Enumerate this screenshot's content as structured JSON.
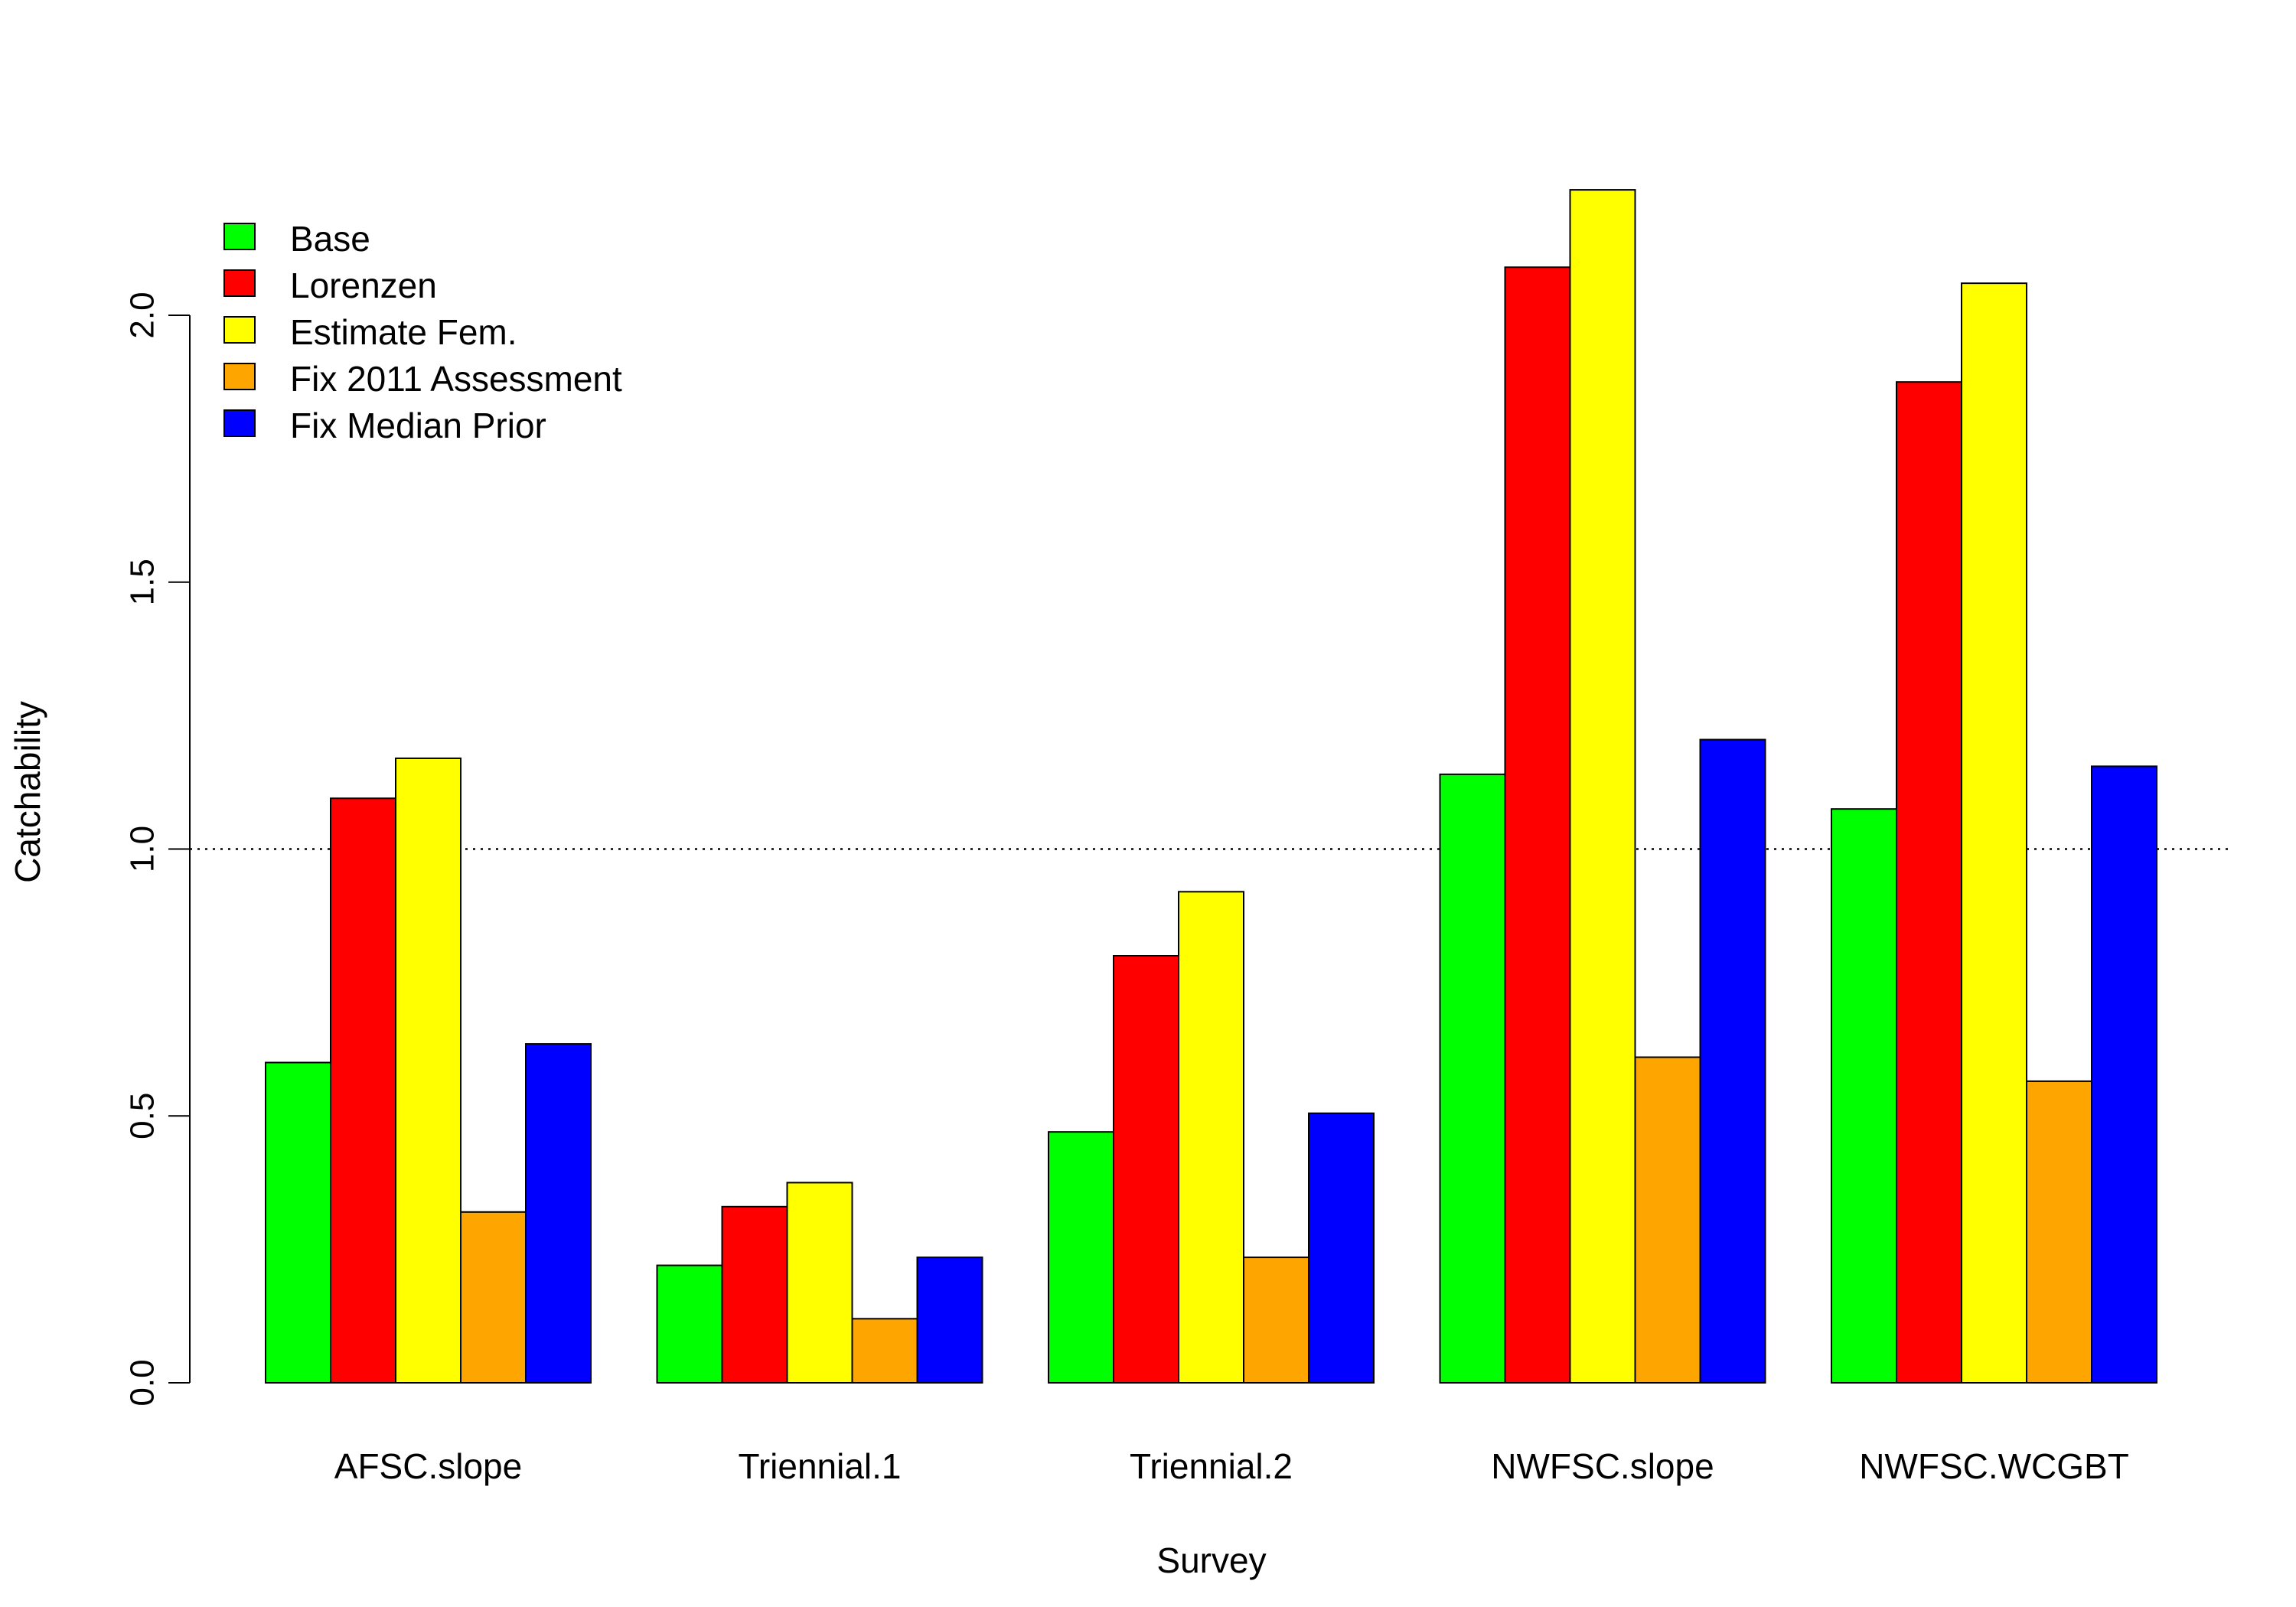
{
  "chart_data": {
    "type": "bar",
    "title": "",
    "xlabel": "Survey",
    "ylabel": "Catchability",
    "ylim": [
      0,
      2.3
    ],
    "yticks": [
      0.0,
      0.5,
      1.0,
      1.5,
      2.0
    ],
    "ytick_labels": [
      "0.0",
      "0.5",
      "1.0",
      "1.5",
      "2.0"
    ],
    "reference_line": {
      "y": 1.0,
      "style": "dotted"
    },
    "grid": false,
    "legend_placement": "top-left",
    "categories": [
      "AFSC.slope",
      "Triennial.1",
      "Triennial.2",
      "NWFSC.slope",
      "NWFSC.WCGBT"
    ],
    "series": [
      {
        "name": "Base",
        "color": "#00ff00",
        "values": [
          0.6,
          0.22,
          0.47,
          1.14,
          1.075
        ]
      },
      {
        "name": "Lorenzen",
        "color": "#ff0000",
        "values": [
          1.095,
          0.33,
          0.8,
          2.09,
          1.875
        ]
      },
      {
        "name": "Estimate Fem.",
        "color": "#ffff00",
        "values": [
          1.17,
          0.375,
          0.92,
          2.235,
          2.06
        ]
      },
      {
        "name": "Fix 2011 Assessment",
        "color": "#ffa500",
        "values": [
          0.32,
          0.12,
          0.235,
          0.61,
          0.565
        ]
      },
      {
        "name": "Fix Median Prior",
        "color": "#0000ff",
        "values": [
          0.635,
          0.235,
          0.505,
          1.205,
          1.155
        ]
      }
    ]
  }
}
